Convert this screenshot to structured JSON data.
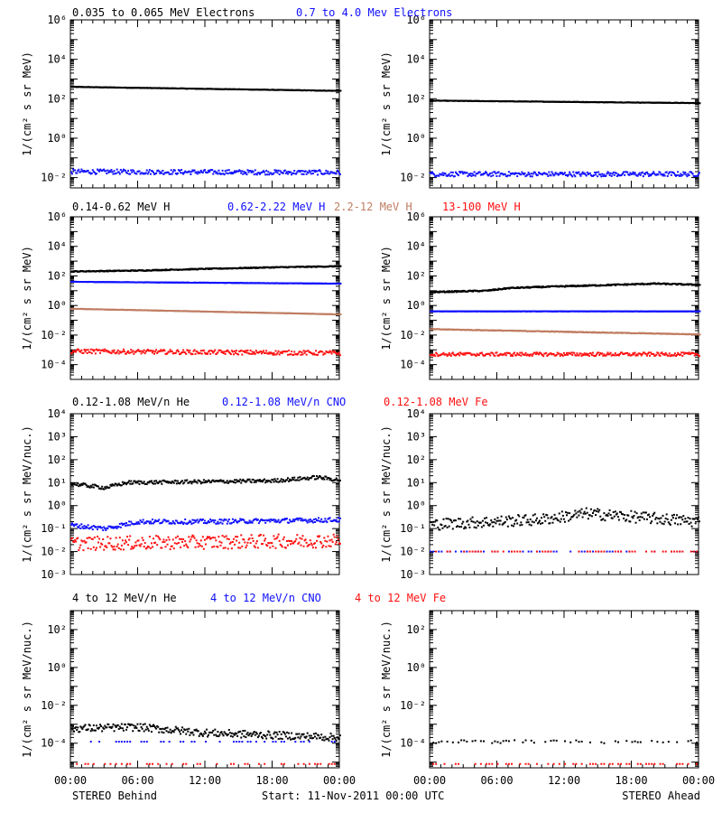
{
  "colors": {
    "black": "#000000",
    "blue": "#1010ff",
    "tan": "#c07d62",
    "red": "#ff1010"
  },
  "bottom_axis": {
    "ticks": [
      "00:00",
      "06:00",
      "12:00",
      "18:00",
      "00:00"
    ],
    "left_caption": "STEREO Behind",
    "center_caption": "Start: 11-Nov-2011 00:00 UTC",
    "right_caption": "STEREO Ahead"
  },
  "chart_data": [
    {
      "type": "scatter",
      "row": 1,
      "spacecraft": "STEREO Behind",
      "log_y": true,
      "ylabel": "1/(cm² s sr MeV)",
      "ylim": [
        0.003,
        1000000
      ],
      "y_ticks": [
        [
          "10⁶",
          1000000
        ],
        [
          "10⁴",
          10000
        ],
        [
          "10²",
          100
        ],
        [
          "10⁰",
          1
        ],
        [
          "10⁻²",
          0.01
        ]
      ],
      "xlim": [
        0,
        24
      ],
      "series": [
        {
          "name": "0.035 to 0.065 MeV Electrons",
          "color_key": "black",
          "style": "line",
          "levels": [
            [
              0,
              400
            ],
            [
              24,
              250
            ]
          ],
          "jitter": 0.01
        },
        {
          "name": "0.7 to 4.0 Mev Electrons",
          "color_key": "blue",
          "style": "dots",
          "levels": [
            [
              0,
              0.02
            ],
            [
              24,
              0.018
            ]
          ],
          "jitter": 0.12
        }
      ]
    },
    {
      "type": "scatter",
      "row": 1,
      "spacecraft": "STEREO Ahead",
      "log_y": true,
      "ylabel": "1/(cm² s sr MeV)",
      "ylim": [
        0.003,
        1000000
      ],
      "y_ticks": [
        [
          "10⁶",
          1000000
        ],
        [
          "10⁴",
          10000
        ],
        [
          "10²",
          100
        ],
        [
          "10⁰",
          1
        ],
        [
          "10⁻²",
          0.01
        ]
      ],
      "xlim": [
        0,
        24
      ],
      "series": [
        {
          "name": "",
          "color_key": "black",
          "style": "line",
          "levels": [
            [
              0,
              80
            ],
            [
              24,
              60
            ]
          ],
          "jitter": 0.01
        },
        {
          "name": "",
          "color_key": "blue",
          "style": "dots",
          "levels": [
            [
              0,
              0.015
            ],
            [
              24,
              0.015
            ]
          ],
          "jitter": 0.12
        }
      ]
    },
    {
      "type": "scatter",
      "row": 2,
      "spacecraft": "STEREO Behind",
      "log_y": true,
      "ylabel": "1/(cm² s sr MeV)",
      "ylim": [
        1e-05,
        1000000
      ],
      "y_ticks": [
        [
          "10⁶",
          1000000
        ],
        [
          "10⁴",
          10000
        ],
        [
          "10²",
          100
        ],
        [
          "10⁰",
          1
        ],
        [
          "10⁻²",
          0.01
        ],
        [
          "10⁻⁴",
          0.0001
        ]
      ],
      "xlim": [
        0,
        24
      ],
      "series": [
        {
          "name": "0.14-0.62 MeV H",
          "color_key": "black",
          "style": "line",
          "levels": [
            [
              0,
              200
            ],
            [
              6,
              230
            ],
            [
              12,
              300
            ],
            [
              18,
              380
            ],
            [
              24,
              450
            ]
          ],
          "jitter": 0.03
        },
        {
          "name": "0.62-2.22 MeV H",
          "color_key": "blue",
          "style": "line",
          "levels": [
            [
              0,
              40
            ],
            [
              24,
              30
            ]
          ],
          "jitter": 0.01
        },
        {
          "name": "2.2-12 MeV H",
          "color_key": "tan",
          "style": "line",
          "levels": [
            [
              0,
              0.6
            ],
            [
              24,
              0.25
            ]
          ],
          "jitter": 0.01
        },
        {
          "name": "13-100 MeV H",
          "color_key": "red",
          "style": "dots",
          "levels": [
            [
              0,
              0.0008
            ],
            [
              24,
              0.0006
            ]
          ],
          "jitter": 0.15
        }
      ]
    },
    {
      "type": "scatter",
      "row": 2,
      "spacecraft": "STEREO Ahead",
      "log_y": true,
      "ylabel": "1/(cm² s sr MeV)",
      "ylim": [
        1e-05,
        1000000
      ],
      "y_ticks": [
        [
          "10⁶",
          1000000
        ],
        [
          "10⁴",
          10000
        ],
        [
          "10²",
          100
        ],
        [
          "10⁰",
          1
        ],
        [
          "10⁻²",
          0.01
        ],
        [
          "10⁻⁴",
          0.0001
        ]
      ],
      "xlim": [
        0,
        24
      ],
      "series": [
        {
          "name": "",
          "color_key": "black",
          "style": "line",
          "levels": [
            [
              0,
              8
            ],
            [
              5,
              10
            ],
            [
              7,
              15
            ],
            [
              10,
              18
            ],
            [
              14,
              22
            ],
            [
              20,
              30
            ],
            [
              24,
              25
            ]
          ],
          "jitter": 0.04
        },
        {
          "name": "",
          "color_key": "blue",
          "style": "line",
          "levels": [
            [
              0,
              0.4
            ],
            [
              24,
              0.4
            ]
          ],
          "jitter": 0.01
        },
        {
          "name": "",
          "color_key": "tan",
          "style": "line",
          "levels": [
            [
              0,
              0.025
            ],
            [
              24,
              0.011
            ]
          ],
          "jitter": 0.02
        },
        {
          "name": "",
          "color_key": "red",
          "style": "dots",
          "levels": [
            [
              0,
              0.0005
            ],
            [
              24,
              0.0005
            ]
          ],
          "jitter": 0.12
        }
      ]
    },
    {
      "type": "scatter",
      "row": 3,
      "spacecraft": "STEREO Behind",
      "log_y": true,
      "ylabel": "1/(cm² s sr MeV/nuc.)",
      "ylim": [
        0.001,
        10000
      ],
      "y_ticks": [
        [
          "10⁴",
          10000
        ],
        [
          "10³",
          1000
        ],
        [
          "10²",
          100
        ],
        [
          "10¹",
          10
        ],
        [
          "10⁰",
          1
        ],
        [
          "10⁻¹",
          0.1
        ],
        [
          "10⁻²",
          0.01
        ],
        [
          "10⁻³",
          0.001
        ]
      ],
      "xlim": [
        0,
        24
      ],
      "series": [
        {
          "name": "0.12-1.08 MeV/n He",
          "color_key": "black",
          "style": "dots",
          "levels": [
            [
              0,
              9
            ],
            [
              3,
              6
            ],
            [
              5,
              10
            ],
            [
              12,
              11
            ],
            [
              18,
              12
            ],
            [
              22,
              17
            ],
            [
              24,
              13
            ]
          ],
          "jitter": 0.08
        },
        {
          "name": "0.12-1.08 MeV/n CNO",
          "color_key": "blue",
          "style": "dots",
          "levels": [
            [
              0,
              0.14
            ],
            [
              3,
              0.1
            ],
            [
              6,
              0.2
            ],
            [
              12,
              0.2
            ],
            [
              24,
              0.24
            ]
          ],
          "jitter": 0.1
        },
        {
          "name": "0.12-1.08 MeV Fe",
          "color_key": "red",
          "style": "dots",
          "levels": [
            [
              0,
              0.022
            ],
            [
              24,
              0.03
            ]
          ],
          "jitter": 0.3
        }
      ]
    },
    {
      "type": "scatter",
      "row": 3,
      "spacecraft": "STEREO Ahead",
      "log_y": true,
      "ylabel": "1/(cm² s sr MeV/nuc.)",
      "ylim": [
        0.001,
        10000
      ],
      "y_ticks": [
        [
          "10⁴",
          10000
        ],
        [
          "10³",
          1000
        ],
        [
          "10²",
          100
        ],
        [
          "10¹",
          10
        ],
        [
          "10⁰",
          1
        ],
        [
          "10⁻¹",
          0.1
        ],
        [
          "10⁻²",
          0.01
        ],
        [
          "10⁻³",
          0.001
        ]
      ],
      "xlim": [
        0,
        24
      ],
      "series": [
        {
          "name": "",
          "color_key": "black",
          "style": "dots",
          "levels": [
            [
              0,
              0.15
            ],
            [
              10,
              0.25
            ],
            [
              14,
              0.45
            ],
            [
              24,
              0.2
            ]
          ],
          "jitter": 0.25
        },
        {
          "name": "",
          "color_key": "blue",
          "style": "sparse",
          "levels": [
            [
              0,
              0.01
            ],
            [
              24,
              0.01
            ]
          ],
          "jitter": 0
        },
        {
          "name": "",
          "color_key": "red",
          "style": "sparse",
          "levels": [
            [
              0,
              0.01
            ],
            [
              24,
              0.01
            ]
          ],
          "jitter": 0
        }
      ]
    },
    {
      "type": "scatter",
      "row": 4,
      "spacecraft": "STEREO Behind",
      "log_y": true,
      "ylabel": "1/(cm² s sr MeV/nuc.)",
      "ylim": [
        5e-06,
        1000
      ],
      "y_ticks": [
        [
          "10²",
          100
        ],
        [
          "10⁰",
          1
        ],
        [
          "10⁻²",
          0.01
        ],
        [
          "10⁻⁴",
          0.0001
        ]
      ],
      "xlim": [
        0,
        24
      ],
      "series": [
        {
          "name": "4 to 12 MeV/n He",
          "color_key": "black",
          "style": "dots",
          "levels": [
            [
              0,
              0.0006
            ],
            [
              6,
              0.0007
            ],
            [
              12,
              0.00035
            ],
            [
              24,
              0.0002
            ]
          ],
          "jitter": 0.2
        },
        {
          "name": "4 to 12 MeV/n CNO",
          "color_key": "blue",
          "style": "sparse",
          "levels": [
            [
              0,
              0.00012
            ],
            [
              24,
              0.00012
            ]
          ],
          "jitter": 0
        },
        {
          "name": "4 to 12 MeV Fe",
          "color_key": "red",
          "style": "sparse",
          "levels": [
            [
              0,
              8e-06
            ],
            [
              24,
              8e-06
            ]
          ],
          "jitter": 0
        }
      ]
    },
    {
      "type": "scatter",
      "row": 4,
      "spacecraft": "STEREO Ahead",
      "log_y": true,
      "ylabel": "1/(cm² s sr MeV/nuc.)",
      "ylim": [
        5e-06,
        1000
      ],
      "y_ticks": [
        [
          "10²",
          100
        ],
        [
          "10⁰",
          1
        ],
        [
          "10⁻²",
          0.01
        ],
        [
          "10⁻⁴",
          0.0001
        ]
      ],
      "xlim": [
        0,
        24
      ],
      "series": [
        {
          "name": "",
          "color_key": "black",
          "style": "sparse",
          "levels": [
            [
              0,
              0.00012
            ],
            [
              24,
              0.00012
            ]
          ],
          "jitter": 0.08
        },
        {
          "name": "",
          "color_key": "red",
          "style": "sparse",
          "levels": [
            [
              0,
              8e-06
            ],
            [
              24,
              8e-06
            ]
          ],
          "jitter": 0
        }
      ]
    }
  ]
}
